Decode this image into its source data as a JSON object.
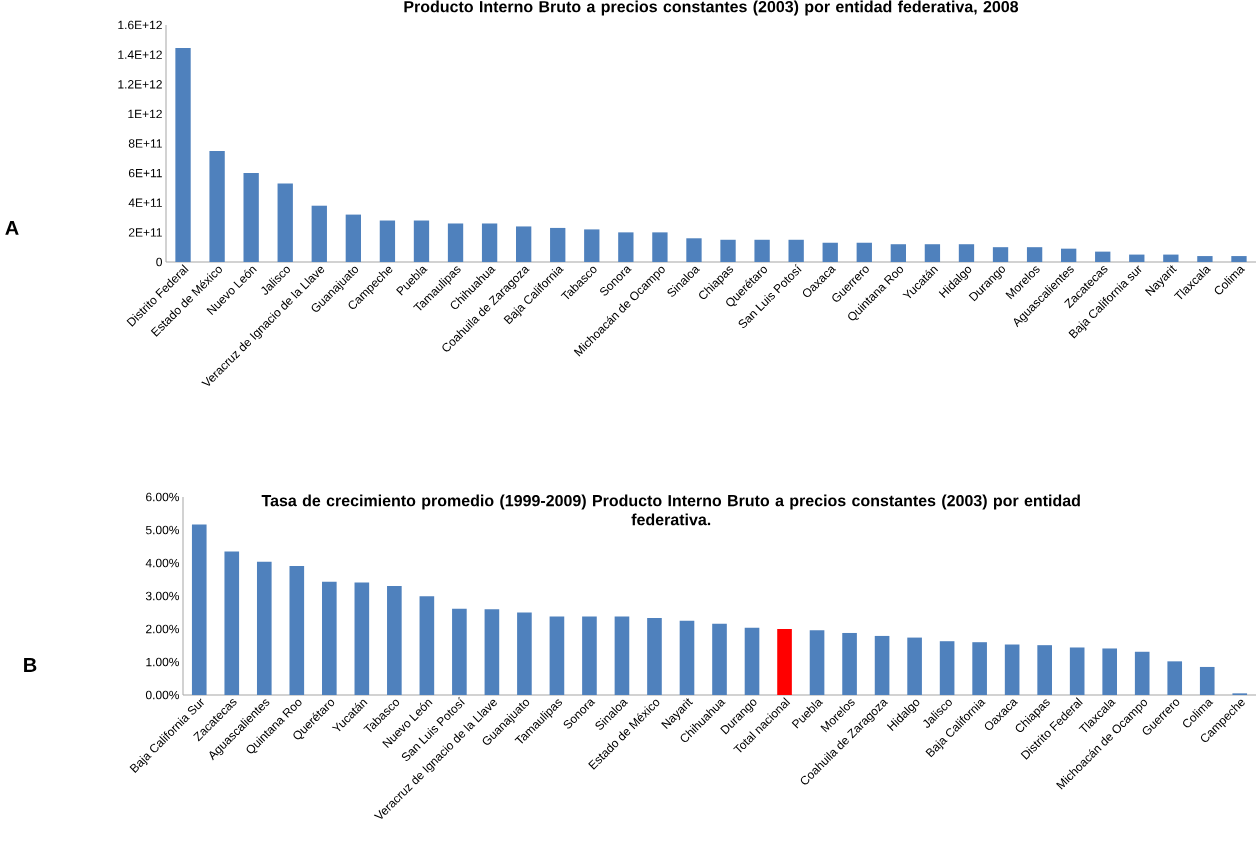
{
  "chart_data": [
    {
      "type": "bar",
      "title": "Producto Interno Bruto a precios constantes  (2003) por entidad federativa, 2008",
      "categories": [
        "Distrito Federal",
        "Estado de México",
        "Nuevo León",
        "Jalisco",
        "Veracruz de Ignacio de la Llave",
        "Guanajuato",
        "Campeche",
        "Puebla",
        "Tamaulipas",
        "Chihuahua",
        "Coahuila de Zaragoza",
        "Baja California",
        "Tabasco",
        "Sonora",
        "Michoacán de Ocampo",
        "Sinaloa",
        "Chiapas",
        "Querétaro",
        "San Luis Potosí",
        "Oaxaca",
        "Guerrero",
        "Quintana Roo",
        "Yucatán",
        "Hidalgo",
        "Durango",
        "Morelos",
        "Aguascalientes",
        "Zacatecas",
        "Baja California sur",
        "Nayarit",
        "Tlaxcala",
        "Colima"
      ],
      "values": [
        1445000000000.0,
        750000000000.0,
        600000000000.0,
        530000000000.0,
        380000000000.0,
        320000000000.0,
        280000000000.0,
        280000000000.0,
        260000000000.0,
        260000000000.0,
        240000000000.0,
        230000000000.0,
        220000000000.0,
        200000000000.0,
        200000000000.0,
        160000000000.0,
        150000000000.0,
        150000000000.0,
        150000000000.0,
        130000000000.0,
        130000000000.0,
        120000000000.0,
        120000000000.0,
        120000000000.0,
        100000000000.0,
        100000000000.0,
        90000000000.0,
        70000000000.0,
        50000000000.0,
        50000000000.0,
        40000000000.0,
        40000000000.0
      ],
      "color": "#4f81bd",
      "ylim": [
        0,
        1600000000000.0
      ],
      "yticks": [
        0,
        {
          "value": 200000000000.0,
          "label": "2E+11"
        },
        {
          "value": 400000000000.0,
          "label": "4E+11"
        },
        {
          "value": 600000000000.0,
          "label": "6E+11"
        },
        {
          "value": 800000000000.0,
          "label": "8E+11"
        },
        {
          "value": 1000000000000.0,
          "label": "1E+12"
        },
        {
          "value": 1200000000000.0,
          "label": "1.2E+12"
        },
        {
          "value": 1400000000000.0,
          "label": "1.4E+12"
        },
        {
          "value": 1600000000000.0,
          "label": "1.6E+12"
        }
      ],
      "annotations": [
        "A"
      ]
    },
    {
      "type": "bar",
      "title": "Tasa de crecimiento promedio (1999-2009) Producto Interno Bruto a precios constantes (2003) por entidad federativa.",
      "categories": [
        "Baja California Sur",
        "Zacatecas",
        "Aguascalientes",
        "Quintana Roo",
        "Querétaro",
        "Yucatán",
        "Tabasco",
        "Nuevo León",
        "San Luis Potosí",
        "Veracruz de Ignacio de la Llave",
        "Guanajuato",
        "Tamaulipas",
        "Sonora",
        "Sinaloa",
        "Estado de México",
        "Nayarit",
        "Chihuahua",
        "Durango",
        "Total nacional",
        "Puebla",
        "Morelos",
        "Coahuila de Zaragoza",
        "Hidalgo",
        "Jalisco",
        "Baja California",
        "Oaxaca",
        "Chiapas",
        "Distrito Federal",
        "Tlaxcala",
        "Michoacán de Ocampo",
        "Guerrero",
        "Colima",
        "Campeche"
      ],
      "values": [
        5.17,
        4.35,
        4.04,
        3.91,
        3.43,
        3.41,
        3.3,
        2.99,
        2.61,
        2.6,
        2.5,
        2.38,
        2.38,
        2.38,
        2.33,
        2.25,
        2.16,
        2.04,
        2.0,
        1.96,
        1.88,
        1.79,
        1.74,
        1.63,
        1.6,
        1.53,
        1.51,
        1.44,
        1.41,
        1.31,
        1.02,
        0.85,
        0.05
      ],
      "colors": [
        "#4f81bd",
        "#4f81bd",
        "#4f81bd",
        "#4f81bd",
        "#4f81bd",
        "#4f81bd",
        "#4f81bd",
        "#4f81bd",
        "#4f81bd",
        "#4f81bd",
        "#4f81bd",
        "#4f81bd",
        "#4f81bd",
        "#4f81bd",
        "#4f81bd",
        "#4f81bd",
        "#4f81bd",
        "#4f81bd",
        "#ff0000",
        "#4f81bd",
        "#4f81bd",
        "#4f81bd",
        "#4f81bd",
        "#4f81bd",
        "#4f81bd",
        "#4f81bd",
        "#4f81bd",
        "#4f81bd",
        "#4f81bd",
        "#4f81bd",
        "#4f81bd",
        "#4f81bd",
        "#4f81bd"
      ],
      "ylim": [
        0,
        6
      ],
      "yticks": [
        {
          "value": 0,
          "label": "0.00%"
        },
        {
          "value": 1,
          "label": "1.00%"
        },
        {
          "value": 2,
          "label": "2.00%"
        },
        {
          "value": 3,
          "label": "3.00%"
        },
        {
          "value": 4,
          "label": "4.00%"
        },
        {
          "value": 5,
          "label": "5.00%"
        },
        {
          "value": 6,
          "label": "6.00%"
        }
      ],
      "annotations": [
        "B"
      ]
    }
  ]
}
